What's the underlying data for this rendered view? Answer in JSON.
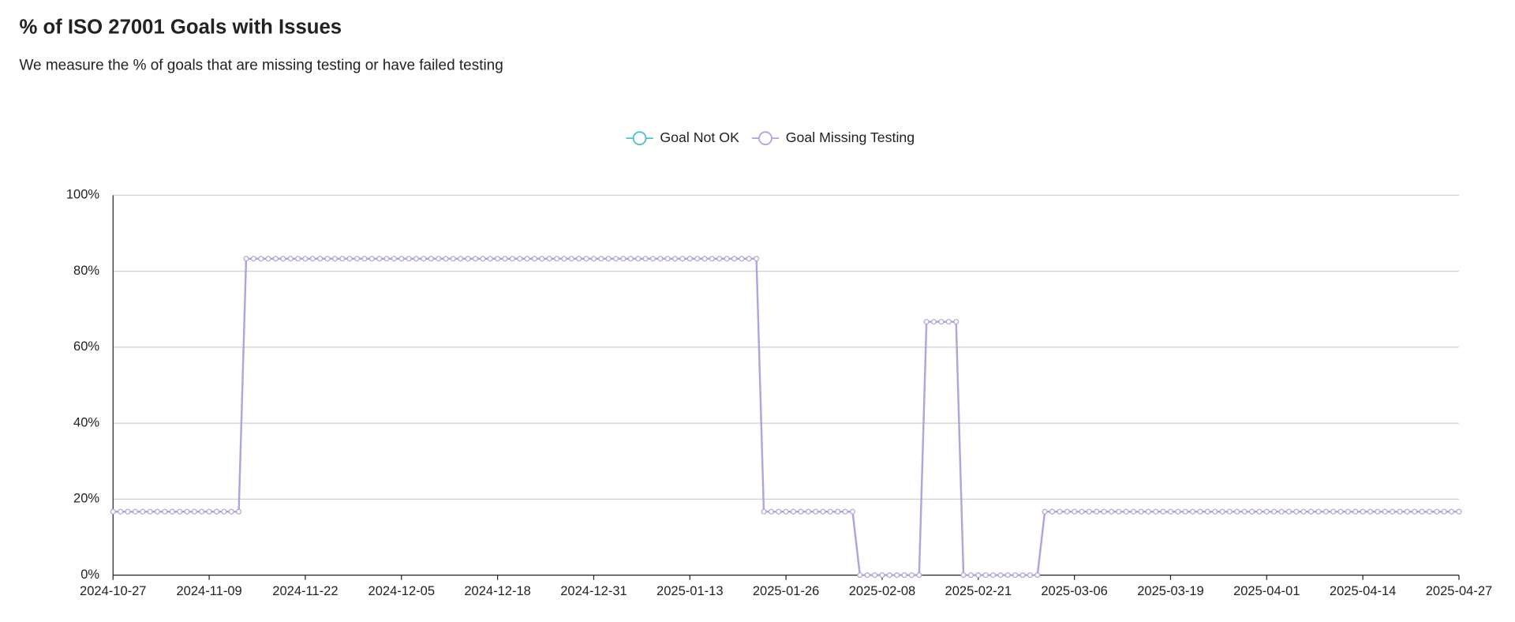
{
  "chart_data": {
    "type": "line",
    "title": "% of ISO 27001 Goals with Issues",
    "subtitle": "We measure the % of goals that are missing testing or have failed testing",
    "x": [
      "2024-10-27",
      "2024-10-28",
      "2024-10-29",
      "2024-10-30",
      "2024-10-31",
      "2024-11-01",
      "2024-11-02",
      "2024-11-03",
      "2024-11-04",
      "2024-11-05",
      "2024-11-06",
      "2024-11-07",
      "2024-11-08",
      "2024-11-09",
      "2024-11-10",
      "2024-11-11",
      "2024-11-12",
      "2024-11-13",
      "2024-11-14",
      "2024-11-15",
      "2024-11-16",
      "2024-11-17",
      "2024-11-18",
      "2024-11-19",
      "2024-11-20",
      "2024-11-21",
      "2024-11-22",
      "2024-11-23",
      "2024-11-24",
      "2024-11-25",
      "2024-11-26",
      "2024-11-27",
      "2024-11-28",
      "2024-11-29",
      "2024-11-30",
      "2024-12-01",
      "2024-12-02",
      "2024-12-03",
      "2024-12-04",
      "2024-12-05",
      "2024-12-06",
      "2024-12-07",
      "2024-12-08",
      "2024-12-09",
      "2024-12-10",
      "2024-12-11",
      "2024-12-12",
      "2024-12-13",
      "2024-12-14",
      "2024-12-15",
      "2024-12-16",
      "2024-12-17",
      "2024-12-18",
      "2024-12-19",
      "2024-12-20",
      "2024-12-21",
      "2024-12-22",
      "2024-12-23",
      "2024-12-24",
      "2024-12-25",
      "2024-12-26",
      "2024-12-27",
      "2024-12-28",
      "2024-12-29",
      "2024-12-30",
      "2024-12-31",
      "2025-01-01",
      "2025-01-02",
      "2025-01-03",
      "2025-01-04",
      "2025-01-05",
      "2025-01-06",
      "2025-01-07",
      "2025-01-08",
      "2025-01-09",
      "2025-01-10",
      "2025-01-11",
      "2025-01-12",
      "2025-01-13",
      "2025-01-14",
      "2025-01-15",
      "2025-01-16",
      "2025-01-17",
      "2025-01-18",
      "2025-01-19",
      "2025-01-20",
      "2025-01-21",
      "2025-01-22",
      "2025-01-23",
      "2025-01-24",
      "2025-01-25",
      "2025-01-26",
      "2025-01-27",
      "2025-01-28",
      "2025-01-29",
      "2025-01-30",
      "2025-01-31",
      "2025-02-01",
      "2025-02-02",
      "2025-02-03",
      "2025-02-04",
      "2025-02-05",
      "2025-02-06",
      "2025-02-07",
      "2025-02-08",
      "2025-02-09",
      "2025-02-10",
      "2025-02-11",
      "2025-02-12",
      "2025-02-13",
      "2025-02-14",
      "2025-02-15",
      "2025-02-16",
      "2025-02-17",
      "2025-02-18",
      "2025-02-19",
      "2025-02-20",
      "2025-02-21",
      "2025-02-22",
      "2025-02-23",
      "2025-02-24",
      "2025-02-25",
      "2025-02-26",
      "2025-02-27",
      "2025-02-28",
      "2025-03-01",
      "2025-03-02",
      "2025-03-03",
      "2025-03-04",
      "2025-03-05",
      "2025-03-06",
      "2025-03-07",
      "2025-03-08",
      "2025-03-09",
      "2025-03-10",
      "2025-03-11",
      "2025-03-12",
      "2025-03-13",
      "2025-03-14",
      "2025-03-15",
      "2025-03-16",
      "2025-03-17",
      "2025-03-18",
      "2025-03-19",
      "2025-03-20",
      "2025-03-21",
      "2025-03-22",
      "2025-03-23",
      "2025-03-24",
      "2025-03-25",
      "2025-03-26",
      "2025-03-27",
      "2025-03-28",
      "2025-03-29",
      "2025-03-30",
      "2025-03-31",
      "2025-04-01",
      "2025-04-02",
      "2025-04-03",
      "2025-04-04",
      "2025-04-05",
      "2025-04-06",
      "2025-04-07",
      "2025-04-08",
      "2025-04-09",
      "2025-04-10",
      "2025-04-11",
      "2025-04-12",
      "2025-04-13",
      "2025-04-14",
      "2025-04-15",
      "2025-04-16",
      "2025-04-17",
      "2025-04-18",
      "2025-04-19",
      "2025-04-20",
      "2025-04-21",
      "2025-04-22",
      "2025-04-23",
      "2025-04-24",
      "2025-04-25",
      "2025-04-26",
      "2025-04-27"
    ],
    "series": [
      {
        "name": "Goal Not OK",
        "color": "#4cc3c3",
        "values": [
          null,
          null,
          null,
          null,
          null,
          null,
          null,
          null,
          null,
          null,
          null,
          null,
          null,
          null,
          null,
          null,
          null,
          null,
          null,
          null,
          null,
          null,
          null,
          null,
          null,
          null,
          null,
          null,
          null,
          null,
          null,
          null,
          null,
          null,
          null,
          null,
          null,
          null,
          null,
          null,
          null,
          null,
          null,
          null,
          null,
          null,
          null,
          null,
          null,
          null,
          null,
          null,
          null,
          null,
          null,
          null,
          null,
          null,
          null,
          null,
          null,
          null,
          null,
          null,
          null,
          null,
          null,
          null,
          null,
          null,
          null,
          null,
          null,
          null,
          null,
          null,
          null,
          null,
          null,
          null,
          null,
          null,
          null,
          null,
          null,
          null,
          null,
          null,
          null,
          null,
          null,
          null,
          null,
          null,
          null,
          null,
          null,
          null,
          null,
          null,
          null,
          null,
          null,
          null,
          null,
          null,
          null,
          null,
          null,
          null,
          null,
          null,
          null,
          null,
          null,
          null,
          null,
          null,
          null,
          null,
          null,
          null,
          null,
          null,
          null,
          null,
          null,
          null,
          null,
          null,
          null,
          null,
          null,
          null,
          null,
          null,
          null,
          null,
          null,
          null,
          null,
          null,
          null,
          null,
          null,
          null,
          null,
          null,
          null,
          null,
          null,
          null,
          null,
          null,
          null,
          null,
          null,
          null,
          null,
          null,
          null,
          null,
          null,
          null,
          null,
          null,
          null,
          null,
          null,
          null,
          null,
          null,
          null,
          null,
          null,
          null,
          null,
          null,
          null,
          null,
          null,
          null,
          null
        ]
      },
      {
        "name": "Goal Missing Testing",
        "color": "#b2a4da",
        "values": [
          16.7,
          16.7,
          16.7,
          16.7,
          16.7,
          16.7,
          16.7,
          16.7,
          16.7,
          16.7,
          16.7,
          16.7,
          16.7,
          16.7,
          16.7,
          16.7,
          16.7,
          16.7,
          83.3,
          83.3,
          83.3,
          83.3,
          83.3,
          83.3,
          83.3,
          83.3,
          83.3,
          83.3,
          83.3,
          83.3,
          83.3,
          83.3,
          83.3,
          83.3,
          83.3,
          83.3,
          83.3,
          83.3,
          83.3,
          83.3,
          83.3,
          83.3,
          83.3,
          83.3,
          83.3,
          83.3,
          83.3,
          83.3,
          83.3,
          83.3,
          83.3,
          83.3,
          83.3,
          83.3,
          83.3,
          83.3,
          83.3,
          83.3,
          83.3,
          83.3,
          83.3,
          83.3,
          83.3,
          83.3,
          83.3,
          83.3,
          83.3,
          83.3,
          83.3,
          83.3,
          83.3,
          83.3,
          83.3,
          83.3,
          83.3,
          83.3,
          83.3,
          83.3,
          83.3,
          83.3,
          83.3,
          83.3,
          83.3,
          83.3,
          83.3,
          83.3,
          83.3,
          83.3,
          16.7,
          16.7,
          16.7,
          16.7,
          16.7,
          16.7,
          16.7,
          16.7,
          16.7,
          16.7,
          16.7,
          16.7,
          16.7,
          0,
          0,
          0,
          0,
          0,
          0,
          0,
          0,
          0,
          66.7,
          66.7,
          66.7,
          66.7,
          66.7,
          0,
          0,
          0,
          0,
          0,
          0,
          0,
          0,
          0,
          0,
          0,
          16.7,
          16.7,
          16.7,
          16.7,
          16.7,
          16.7,
          16.7,
          16.7,
          16.7,
          16.7,
          16.7,
          16.7,
          16.7,
          16.7,
          16.7,
          16.7,
          16.7,
          16.7,
          16.7,
          16.7,
          16.7,
          16.7,
          16.7,
          16.7,
          16.7,
          16.7,
          16.7,
          16.7,
          16.7,
          16.7,
          16.7,
          16.7,
          16.7,
          16.7,
          16.7,
          16.7,
          16.7,
          16.7,
          16.7,
          16.7,
          16.7,
          16.7,
          16.7,
          16.7,
          16.7,
          16.7,
          16.7,
          16.7,
          16.7,
          16.7,
          16.7,
          16.7,
          16.7,
          16.7,
          16.7,
          16.7,
          16.7
        ]
      }
    ],
    "xlim": [
      "2024-10-27",
      "2025-04-27"
    ],
    "xticks": [
      "2024-10-27",
      "2024-11-09",
      "2024-11-22",
      "2024-12-05",
      "2024-12-18",
      "2024-12-31",
      "2025-01-13",
      "2025-01-26",
      "2025-02-08",
      "2025-02-21",
      "2025-03-06",
      "2025-03-19",
      "2025-04-01",
      "2025-04-14",
      "2025-04-27"
    ],
    "ylim": [
      0,
      100
    ],
    "yticks": [
      {
        "value": 0,
        "label": "0%"
      },
      {
        "value": 20,
        "label": "20%"
      },
      {
        "value": 40,
        "label": "40%"
      },
      {
        "value": 60,
        "label": "60%"
      },
      {
        "value": 80,
        "label": "80%"
      },
      {
        "value": 100,
        "label": "100%"
      }
    ],
    "grid": true
  }
}
